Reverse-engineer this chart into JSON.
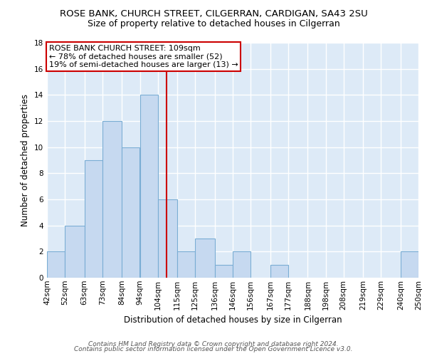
{
  "title": "ROSE BANK, CHURCH STREET, CILGERRAN, CARDIGAN, SA43 2SU",
  "subtitle": "Size of property relative to detached houses in Cilgerran",
  "xlabel": "Distribution of detached houses by size in Cilgerran",
  "ylabel": "Number of detached properties",
  "bar_edges": [
    42,
    52,
    63,
    73,
    84,
    94,
    104,
    115,
    125,
    136,
    146,
    156,
    167,
    177,
    188,
    198,
    208,
    219,
    229,
    240,
    250
  ],
  "bar_heights": [
    2,
    4,
    9,
    12,
    10,
    14,
    6,
    2,
    3,
    1,
    2,
    0,
    1,
    0,
    0,
    0,
    0,
    0,
    0,
    2
  ],
  "bar_color": "#c6d9f0",
  "bar_edgecolor": "#7aadd4",
  "property_line_x": 109,
  "property_line_color": "#cc0000",
  "ylim": [
    0,
    18
  ],
  "yticks": [
    0,
    2,
    4,
    6,
    8,
    10,
    12,
    14,
    16,
    18
  ],
  "xtick_labels": [
    "42sqm",
    "52sqm",
    "63sqm",
    "73sqm",
    "84sqm",
    "94sqm",
    "104sqm",
    "115sqm",
    "125sqm",
    "136sqm",
    "146sqm",
    "156sqm",
    "167sqm",
    "177sqm",
    "188sqm",
    "198sqm",
    "208sqm",
    "219sqm",
    "229sqm",
    "240sqm",
    "250sqm"
  ],
  "annotation_title": "ROSE BANK CHURCH STREET: 109sqm",
  "annotation_line1": "← 78% of detached houses are smaller (52)",
  "annotation_line2": "19% of semi-detached houses are larger (13) →",
  "footer1": "Contains HM Land Registry data © Crown copyright and database right 2024.",
  "footer2": "Contains public sector information licensed under the Open Government Licence v3.0.",
  "background_color": "#ddeaf7",
  "grid_color": "#ffffff",
  "title_fontsize": 9.5,
  "subtitle_fontsize": 9,
  "label_fontsize": 8.5,
  "tick_fontsize": 7.5,
  "annot_fontsize": 8,
  "footer_fontsize": 6.5
}
